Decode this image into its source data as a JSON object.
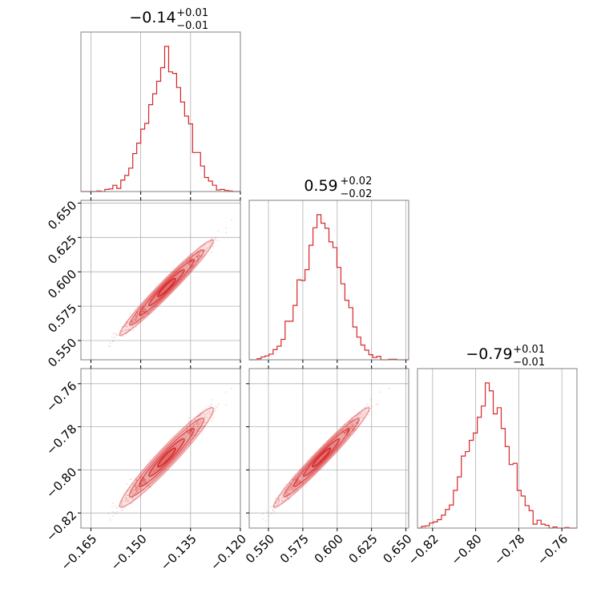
{
  "chart_data": {
    "type": "corner",
    "color": "#d62728",
    "parameters": [
      {
        "title": {
          "main": "−0.14",
          "upper": "+0.01",
          "lower": "−0.01"
        },
        "range": [
          -0.168,
          -0.12
        ],
        "ticks": [
          -0.165,
          -0.15,
          -0.135,
          -0.12
        ],
        "tick_labels": [
          "−0.165",
          "−0.150",
          "−0.135",
          "−0.120"
        ],
        "median": -0.142,
        "sigma": 0.0058
      },
      {
        "title": {
          "main": "0.59",
          "upper": "+0.02",
          "lower": "−0.02"
        },
        "range": [
          0.536,
          0.652
        ],
        "ticks": [
          0.55,
          0.575,
          0.6,
          0.625,
          0.65
        ],
        "tick_labels": [
          "0.550",
          "0.575",
          "0.600",
          "0.625",
          "0.650"
        ],
        "median": 0.589,
        "sigma": 0.0145
      },
      {
        "title": {
          "main": "−0.79",
          "upper": "+0.01",
          "lower": "−0.01"
        },
        "range": [
          -0.827,
          -0.753
        ],
        "ticks": [
          -0.82,
          -0.8,
          -0.78,
          -0.76
        ],
        "tick_labels": [
          "−0.82",
          "−0.80",
          "−0.78",
          "−0.76"
        ],
        "median": -0.794,
        "sigma": 0.0095
      }
    ],
    "bins": 40,
    "samples": 3000,
    "grid": true
  }
}
